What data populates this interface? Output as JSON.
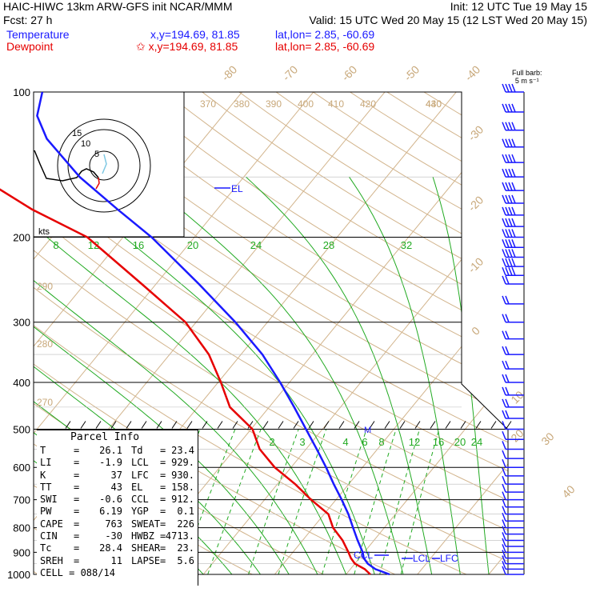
{
  "header": {
    "left_line1": "HAIC-HIWC 13km ARW-GFS init   NCAR/MMM",
    "left_line2": "Fcst:   27 h",
    "right_line1": "Init: 12 UTC Tue 19 May 15",
    "right_line2": "Valid: 15 UTC Wed 20 May 15 (12 LST Wed 20 May 15)",
    "temp_label": "Temperature",
    "temp_xy": "x,y=194.69, 81.85",
    "temp_latlon": "lat,lon=  2.85, -60.69",
    "dew_label": "Dewpoint",
    "dew_xy": "✩ x,y=194.69, 81.85",
    "dew_latlon": "lat,lon=  2.85, -60.69",
    "barb_title": "Full barb:",
    "barb_unit": "5 m s⁻¹",
    "colors": {
      "temperature": "#1a1aff",
      "dewpoint": "#e60000"
    }
  },
  "chart_data": {
    "type": "line",
    "title": "HAIC-HIWC 13km ARW-GFS init NCAR/MMM",
    "y_axis": "pressure (hPa), log scale",
    "ylim": [
      1000,
      100
    ],
    "pressure_ticks": [
      "100",
      "200",
      "300",
      "400",
      "500",
      "600",
      "700",
      "800",
      "900",
      "1000"
    ],
    "isotherm_labels": [
      "-80",
      "-70",
      "-60",
      "-50",
      "-40",
      "-30",
      "-20",
      "-10",
      "0",
      "10",
      "20",
      "30",
      "40"
    ],
    "theta_labels": [
      "370",
      "380",
      "390",
      "400",
      "410",
      "420",
      "430",
      "440",
      "290",
      "280",
      "270"
    ],
    "mixing_ratio_labels": [
      "8",
      "12",
      "16",
      "20",
      "24",
      "28",
      "32"
    ],
    "mixing_ratio_labels_low": [
      "2",
      "3",
      "4",
      "6",
      "8",
      "12",
      "16",
      "20",
      "24"
    ],
    "series": [
      {
        "name": "Temperature",
        "color": "#1a1aff",
        "values": [
          [
            1000,
            26.1
          ],
          [
            975,
            23.5
          ],
          [
            950,
            21.8
          ],
          [
            925,
            20.6
          ],
          [
            900,
            19.8
          ],
          [
            850,
            17.7
          ],
          [
            800,
            15.6
          ],
          [
            750,
            13.4
          ],
          [
            700,
            10.8
          ],
          [
            650,
            7.9
          ],
          [
            600,
            4.9
          ],
          [
            550,
            1.5
          ],
          [
            500,
            -2.3
          ],
          [
            450,
            -6.5
          ],
          [
            400,
            -11.3
          ],
          [
            350,
            -17.0
          ],
          [
            300,
            -24.5
          ],
          [
            250,
            -34.0
          ],
          [
            200,
            -46.0
          ],
          [
            175,
            -54.0
          ],
          [
            150,
            -63.0
          ],
          [
            125,
            -72.0
          ],
          [
            112,
            -76.0
          ],
          [
            100,
            -78.0
          ]
        ]
      },
      {
        "name": "Dewpoint",
        "color": "#e60000",
        "values": [
          [
            1000,
            23.4
          ],
          [
            975,
            22.0
          ],
          [
            950,
            20.0
          ],
          [
            925,
            18.8
          ],
          [
            900,
            17.8
          ],
          [
            850,
            15.6
          ],
          [
            800,
            12.8
          ],
          [
            750,
            10.6
          ],
          [
            700,
            6.5
          ],
          [
            650,
            2.5
          ],
          [
            600,
            -2.3
          ],
          [
            550,
            -6.5
          ],
          [
            500,
            -9.8
          ],
          [
            450,
            -15.5
          ],
          [
            400,
            -19.6
          ],
          [
            350,
            -24.5
          ],
          [
            300,
            -31.5
          ],
          [
            250,
            -42.0
          ],
          [
            200,
            -55.0
          ],
          [
            175,
            -66.0
          ],
          [
            150,
            -77.0
          ],
          [
            125,
            -83.0
          ],
          [
            112,
            -85.0
          ],
          [
            100,
            -86.0
          ]
        ]
      }
    ],
    "annotations": [
      "EL",
      "CCL",
      "LCL",
      "LFC",
      "M",
      "kts",
      "15",
      "10",
      "5"
    ]
  },
  "parcel": {
    "title": "Parcel Info",
    "rows": [
      [
        "T",
        "=",
        "26.1",
        "Td",
        "=",
        "23.4"
      ],
      [
        "LI",
        "=",
        "-1.9",
        "LCL",
        "=",
        "929."
      ],
      [
        "K",
        "=",
        "37",
        "LFC",
        "=",
        "930."
      ],
      [
        "TT",
        "=",
        "43",
        "EL",
        "=",
        "158."
      ],
      [
        "SWI",
        "=",
        "-0.6",
        "CCL",
        "=",
        "912."
      ],
      [
        "PW",
        "=",
        "6.19",
        "YGP",
        "=",
        "0.1"
      ],
      [
        "CAPE",
        "=",
        "763",
        "SWEAT",
        "=",
        "226"
      ],
      [
        "CIN",
        "=",
        "-30",
        "HWBZ",
        "=",
        "4713."
      ],
      [
        "Tc",
        "=",
        "28.4",
        "SHEAR",
        "=",
        "23."
      ],
      [
        "SREH",
        "=",
        "11",
        "LAPSE",
        "=",
        "5.6"
      ]
    ],
    "cell_label": "CELL = 088/14"
  }
}
